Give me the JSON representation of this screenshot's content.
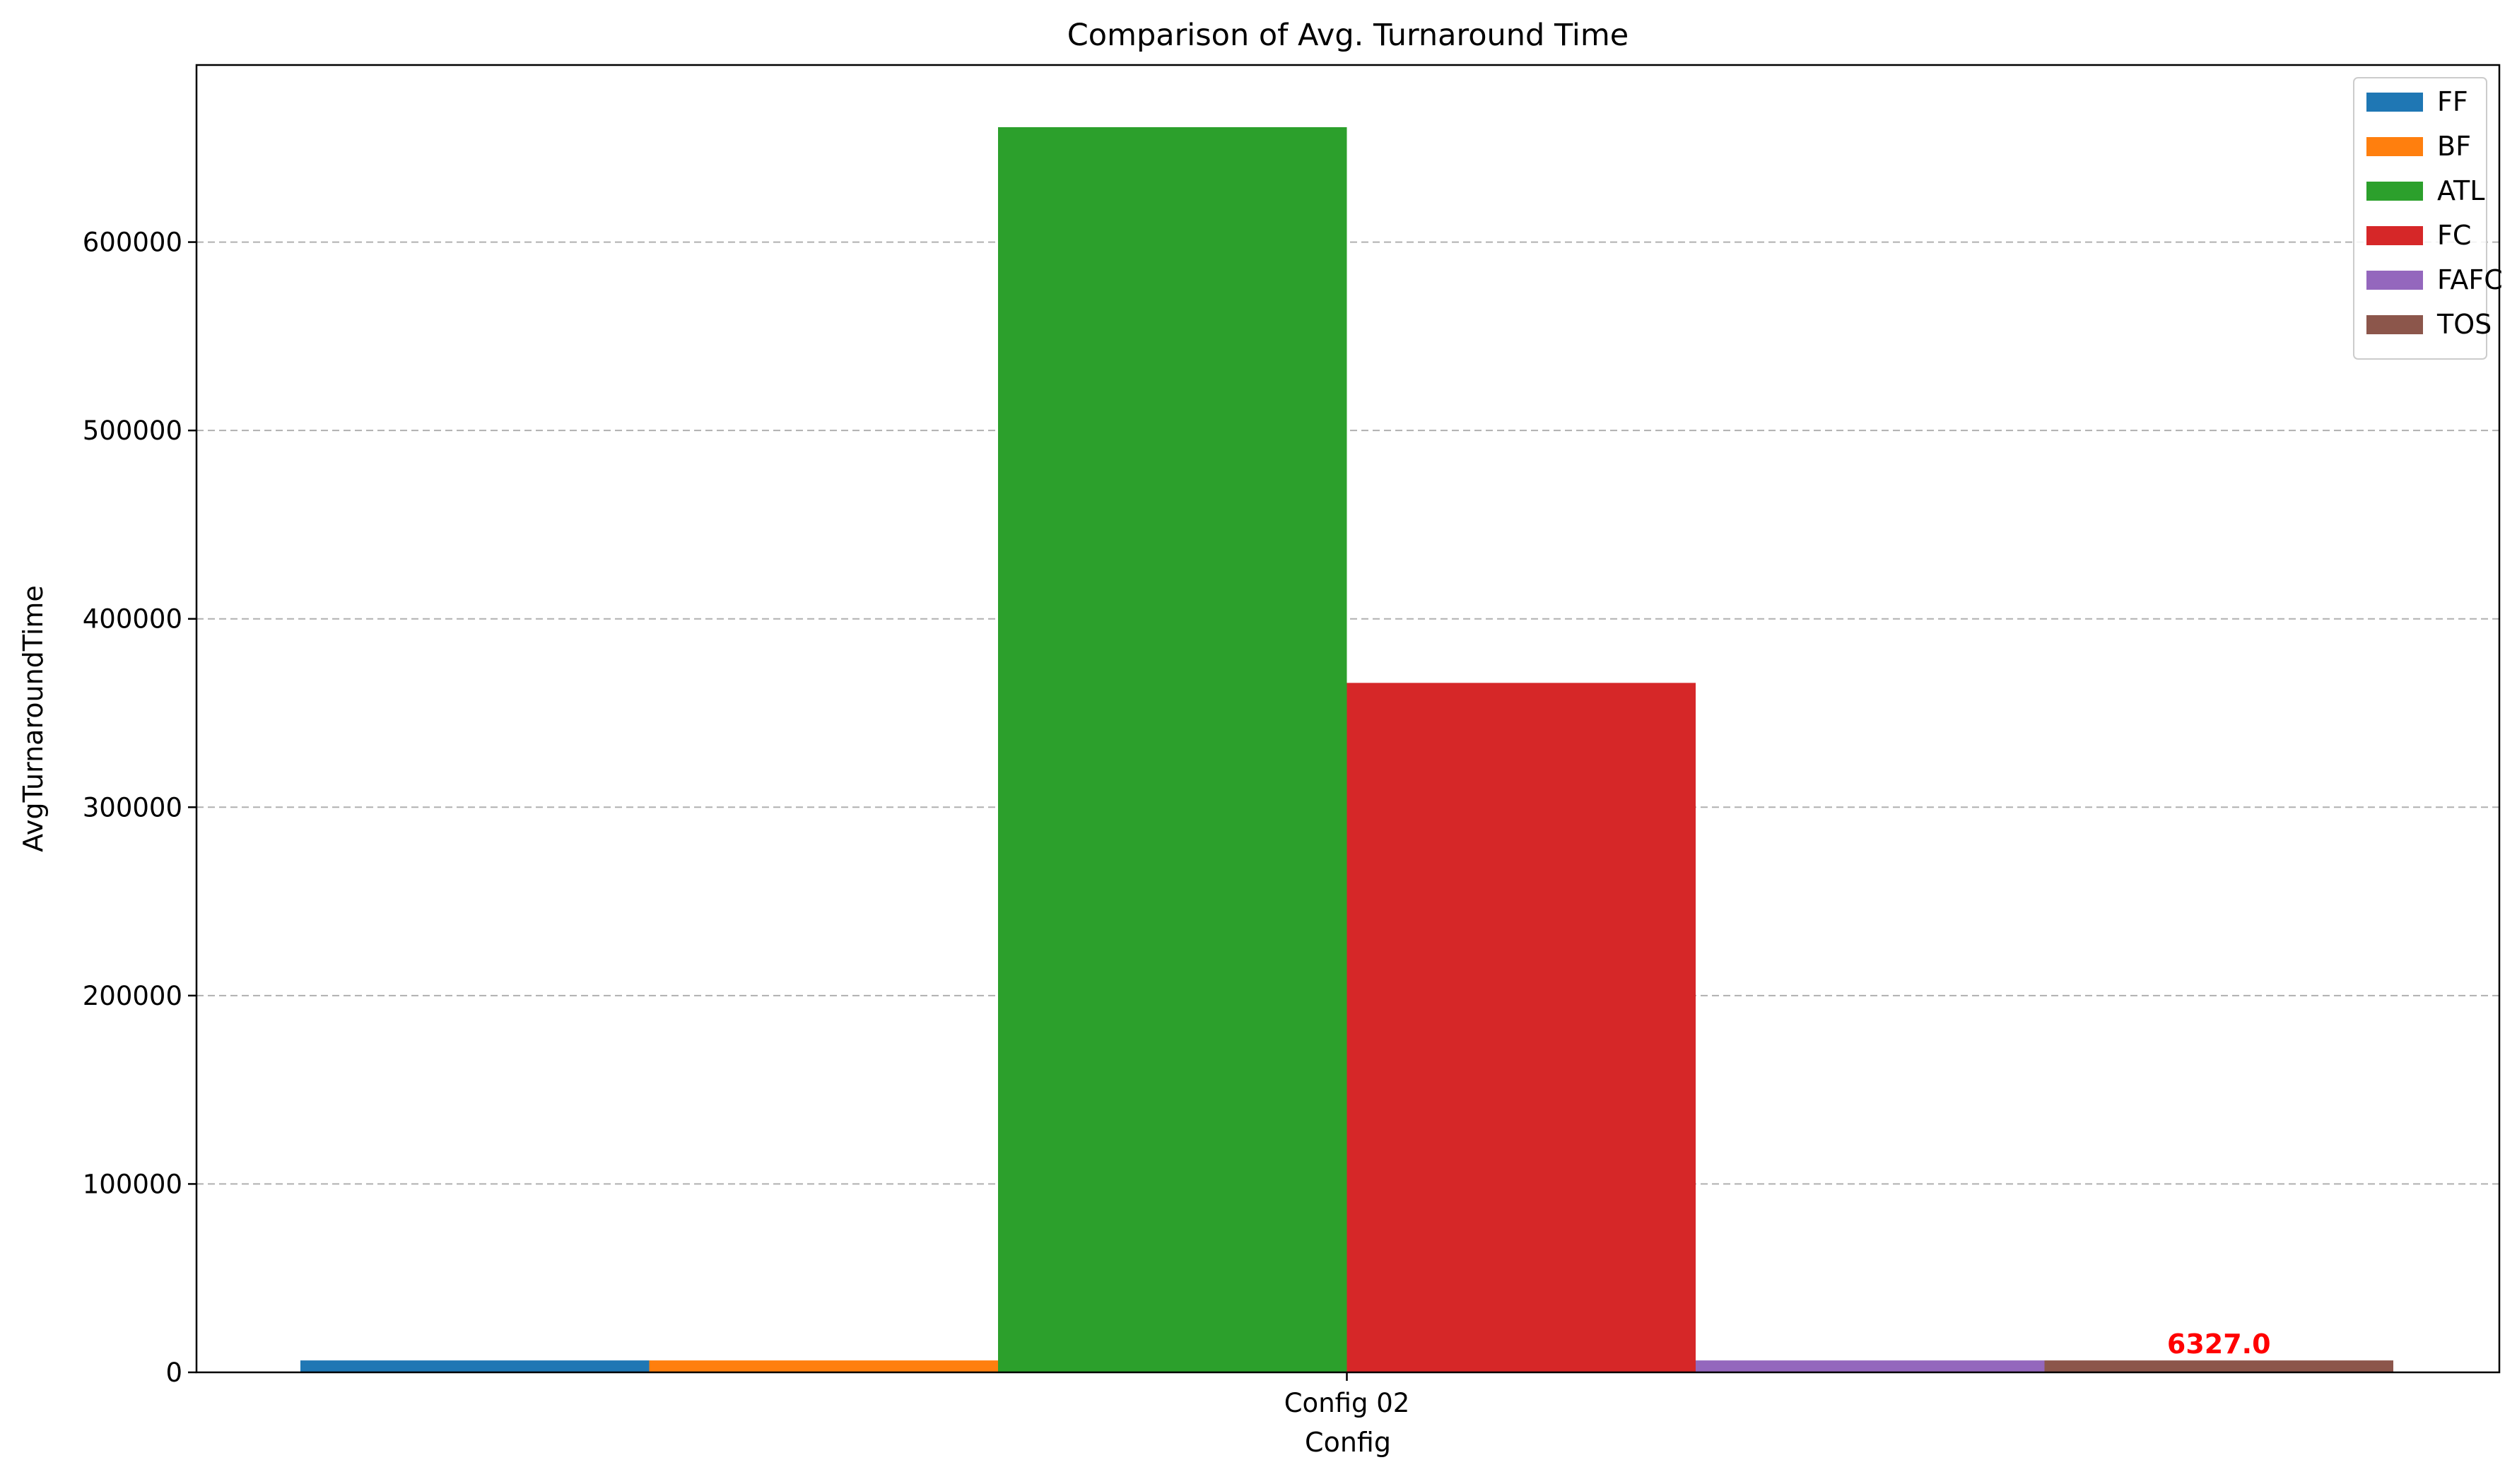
{
  "chart_data": {
    "type": "bar",
    "title": "Comparison of Avg. Turnaround Time",
    "xlabel": "Config",
    "ylabel": "AvgTurnaroundTime",
    "categories": [
      "Config 02"
    ],
    "ylim": [
      0,
      694000
    ],
    "yticks": [
      0,
      100000,
      200000,
      300000,
      400000,
      500000,
      600000
    ],
    "ytick_labels": [
      "0",
      "100000",
      "200000",
      "300000",
      "400000",
      "500000",
      "600000"
    ],
    "grid": "y-dashed",
    "legend_position": "top-right",
    "series": [
      {
        "name": "FF",
        "values": [
          6327
        ],
        "color": "#1f77b4"
      },
      {
        "name": "BF",
        "values": [
          6327
        ],
        "color": "#ff7f0e"
      },
      {
        "name": "ATL",
        "values": [
          661000
        ],
        "color": "#2ca02c"
      },
      {
        "name": "FC",
        "values": [
          366000
        ],
        "color": "#d62728"
      },
      {
        "name": "FAFC",
        "values": [
          6327
        ],
        "color": "#9467bd"
      },
      {
        "name": "TOS",
        "values": [
          6327
        ],
        "color": "#8c564b"
      }
    ],
    "annotations": [
      {
        "series": "TOS",
        "category": "Config 02",
        "text": "6327.0",
        "color": "#ff0000"
      }
    ]
  }
}
